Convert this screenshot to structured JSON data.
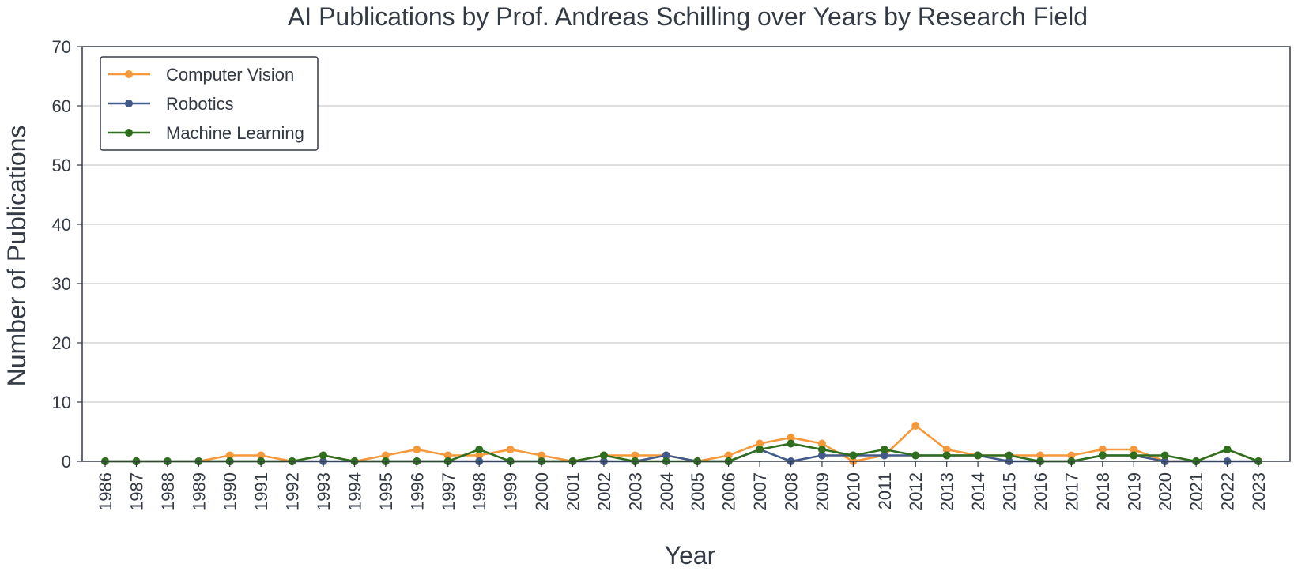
{
  "chart_data": {
    "type": "line",
    "title": "AI Publications by Prof. Andreas Schilling over Years by Research Field",
    "xlabel": "Year",
    "ylabel": "Number of Publications",
    "ylim": [
      0,
      70
    ],
    "yticks": [
      0,
      10,
      20,
      30,
      40,
      50,
      60,
      70
    ],
    "grid": "horizontal",
    "legend_position": "top-left",
    "x": [
      "1986",
      "1987",
      "1988",
      "1989",
      "1990",
      "1991",
      "1992",
      "1993",
      "1994",
      "1995",
      "1996",
      "1997",
      "1998",
      "1999",
      "2000",
      "2001",
      "2002",
      "2003",
      "2004",
      "2005",
      "2006",
      "2007",
      "2008",
      "2009",
      "2010",
      "2011",
      "2012",
      "2013",
      "2014",
      "2015",
      "2016",
      "2017",
      "2018",
      "2019",
      "2020",
      "2021",
      "2022",
      "2023"
    ],
    "series": [
      {
        "name": "Computer Vision",
        "color": "#f7993a",
        "values": [
          0,
          0,
          0,
          0,
          1,
          1,
          0,
          1,
          0,
          1,
          2,
          1,
          1,
          2,
          1,
          0,
          1,
          1,
          1,
          0,
          1,
          3,
          4,
          3,
          0,
          1,
          6,
          2,
          1,
          1,
          1,
          1,
          2,
          2,
          0,
          0,
          2,
          0
        ]
      },
      {
        "name": "Robotics",
        "color": "#435b8a",
        "values": [
          0,
          0,
          0,
          0,
          0,
          0,
          0,
          0,
          0,
          0,
          0,
          0,
          0,
          0,
          0,
          0,
          0,
          0,
          1,
          0,
          0,
          2,
          0,
          1,
          1,
          1,
          1,
          1,
          1,
          0,
          0,
          0,
          1,
          1,
          0,
          0,
          0,
          0
        ]
      },
      {
        "name": "Machine Learning",
        "color": "#2f6e1e",
        "values": [
          0,
          0,
          0,
          0,
          0,
          0,
          0,
          1,
          0,
          0,
          0,
          0,
          2,
          0,
          0,
          0,
          1,
          0,
          0,
          0,
          0,
          2,
          3,
          2,
          1,
          2,
          1,
          1,
          1,
          1,
          0,
          0,
          1,
          1,
          1,
          0,
          2,
          0
        ]
      }
    ]
  }
}
